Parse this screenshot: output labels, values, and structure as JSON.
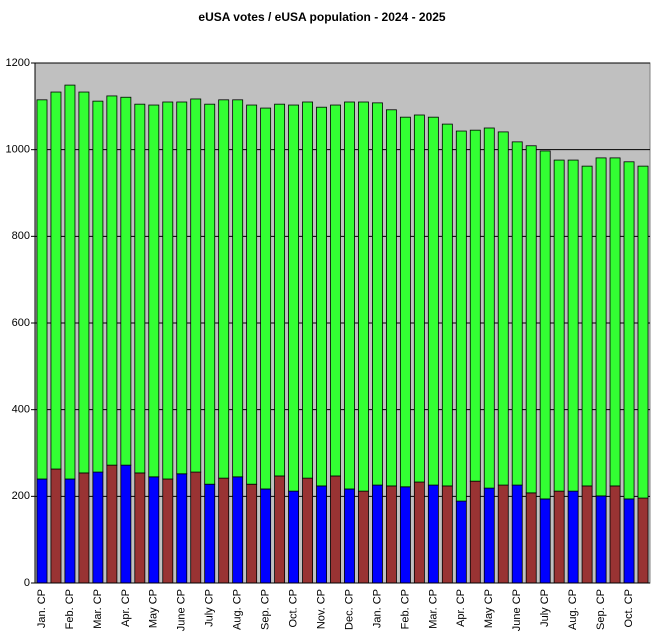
{
  "chart_data": {
    "type": "stacked_bar",
    "title": "eUSA votes / eUSA population - 2024 - 2025",
    "categories": [
      "Jan. CP",
      null,
      "Feb. CP",
      null,
      "Mar. CP",
      null,
      "Apr. CP",
      null,
      "May CP",
      null,
      "June CP",
      null,
      "July CP",
      null,
      "Aug. CP",
      null,
      "Sep. CP",
      null,
      "Oct. CP",
      null,
      "Nov. CP",
      null,
      "Dec. CP",
      null,
      "Jan. CP",
      null,
      "Feb. CP",
      null,
      "Mar. CP",
      null,
      "Apr. CP",
      null,
      "May CP",
      null,
      "June CP",
      null,
      "July CP",
      null,
      "Aug. CP",
      null,
      "Sep. CP",
      null,
      "Oct. CP",
      null
    ],
    "series": [
      {
        "colors": [
          "#0000ff",
          "#993333"
        ],
        "values": [
          240,
          263,
          240,
          254,
          256,
          272,
          272,
          254,
          245,
          240,
          252,
          256,
          228,
          242,
          245,
          228,
          217,
          247,
          212,
          242,
          224,
          247,
          217,
          212,
          226,
          224,
          222,
          233,
          226,
          224,
          189,
          235,
          219,
          226,
          226,
          208,
          194,
          212,
          212,
          224,
          201,
          224,
          194,
          196
        ]
      },
      {
        "color": "#33ff33",
        "values": [
          875,
          870,
          909,
          879,
          856,
          852,
          849,
          851,
          858,
          870,
          858,
          861,
          877,
          873,
          870,
          875,
          879,
          858,
          891,
          868,
          874,
          856,
          893,
          898,
          882,
          868,
          853,
          847,
          849,
          835,
          854,
          810,
          831,
          815,
          792,
          801,
          803,
          764,
          764,
          738,
          780,
          757,
          778,
          766
        ]
      }
    ],
    "ylim": [
      0,
      1200
    ],
    "yticks": [
      0,
      200,
      400,
      600,
      800,
      1000,
      1200
    ],
    "grid": true,
    "plot_background": "#c0c0c0"
  }
}
